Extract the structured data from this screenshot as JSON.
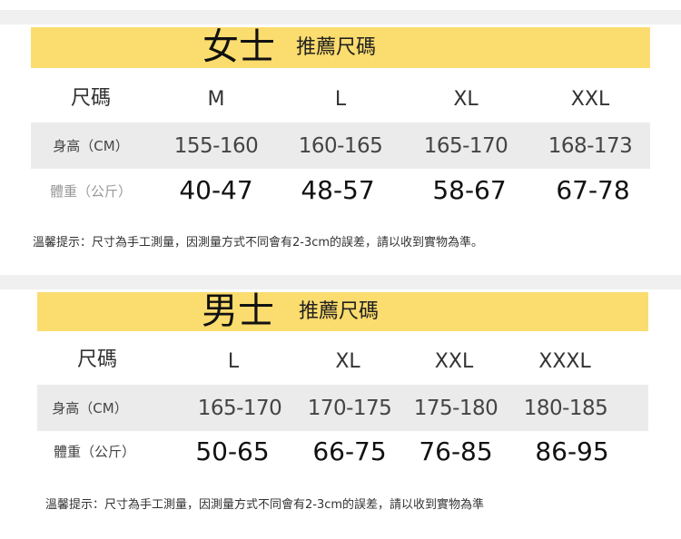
{
  "colors": {
    "header_bar": "#fbdc6e",
    "row_shade": "#ebebeb"
  },
  "women": {
    "title": "女士",
    "subtitle": "推薦尺碼",
    "size_label": "尺碼",
    "sizes": [
      "M",
      "L",
      "XL",
      "XXL"
    ],
    "height_label": "身高（CM）",
    "heights": [
      "155-160",
      "160-165",
      "165-170",
      "168-173"
    ],
    "weight_label": "體重（公斤）",
    "weights": [
      "40-47",
      "48-57",
      "58-67",
      "67-78"
    ],
    "note": "溫馨提示：尺寸為手工測量，因測量方式不同會有2-3cm的誤差，請以收到實物為準。"
  },
  "men": {
    "title": "男士",
    "subtitle": "推薦尺碼",
    "size_label": "尺碼",
    "sizes": [
      "L",
      "XL",
      "XXL",
      "XXXL"
    ],
    "height_label": "身高（CM）",
    "heights": [
      "165-170",
      "170-175",
      "175-180",
      "180-185"
    ],
    "weight_label": "體重（公斤）",
    "weights": [
      "50-65",
      "66-75",
      "76-85",
      "86-95"
    ],
    "note": "溫馨提示：尺寸為手工測量，因測量方式不同會有2-3cm的誤差，請以收到實物為準"
  }
}
